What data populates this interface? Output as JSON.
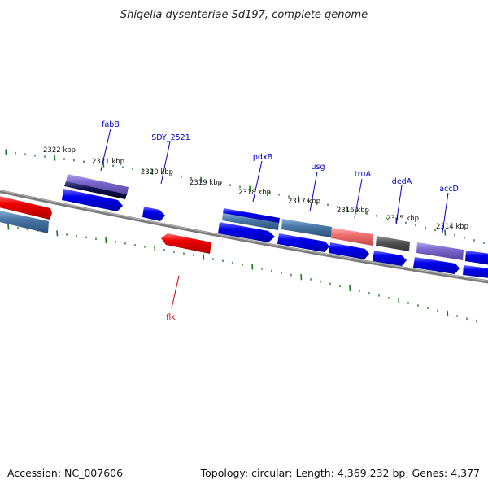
{
  "title": "Shigella dysenteriae Sd197, complete genome",
  "footer": {
    "accession": "Accession: NC_007606",
    "summary": "Topology: circular; Length: 4,369,232 bp; Genes: 4,377"
  },
  "scale_labels": [
    "2322 kbp",
    "2321 kbp",
    "2320 kbp",
    "2319 kbp",
    "2318 kbp",
    "2317 kbp",
    "2316 kbp",
    "2315 kbp",
    "2314 kbp"
  ],
  "gene_labels": {
    "fabB": "fabB",
    "sdy_2521": "SDY_2521",
    "pdxB": "pdxB",
    "usg": "usg",
    "truA": "truA",
    "dedA": "dedA",
    "accD": "accD",
    "flk": "flk"
  },
  "colors": {
    "label_blue": "#0000cc",
    "label_red": "#cc0000",
    "tick_green": "#1a7a1a",
    "backbone": "#808080",
    "cds_blue": "#0000ee",
    "cds_red": "#ee0000",
    "steel": "#4a78a8",
    "purple": "#7a66cc",
    "navy": "#101050",
    "salmon": "#ee7070",
    "gray": "#555555"
  }
}
